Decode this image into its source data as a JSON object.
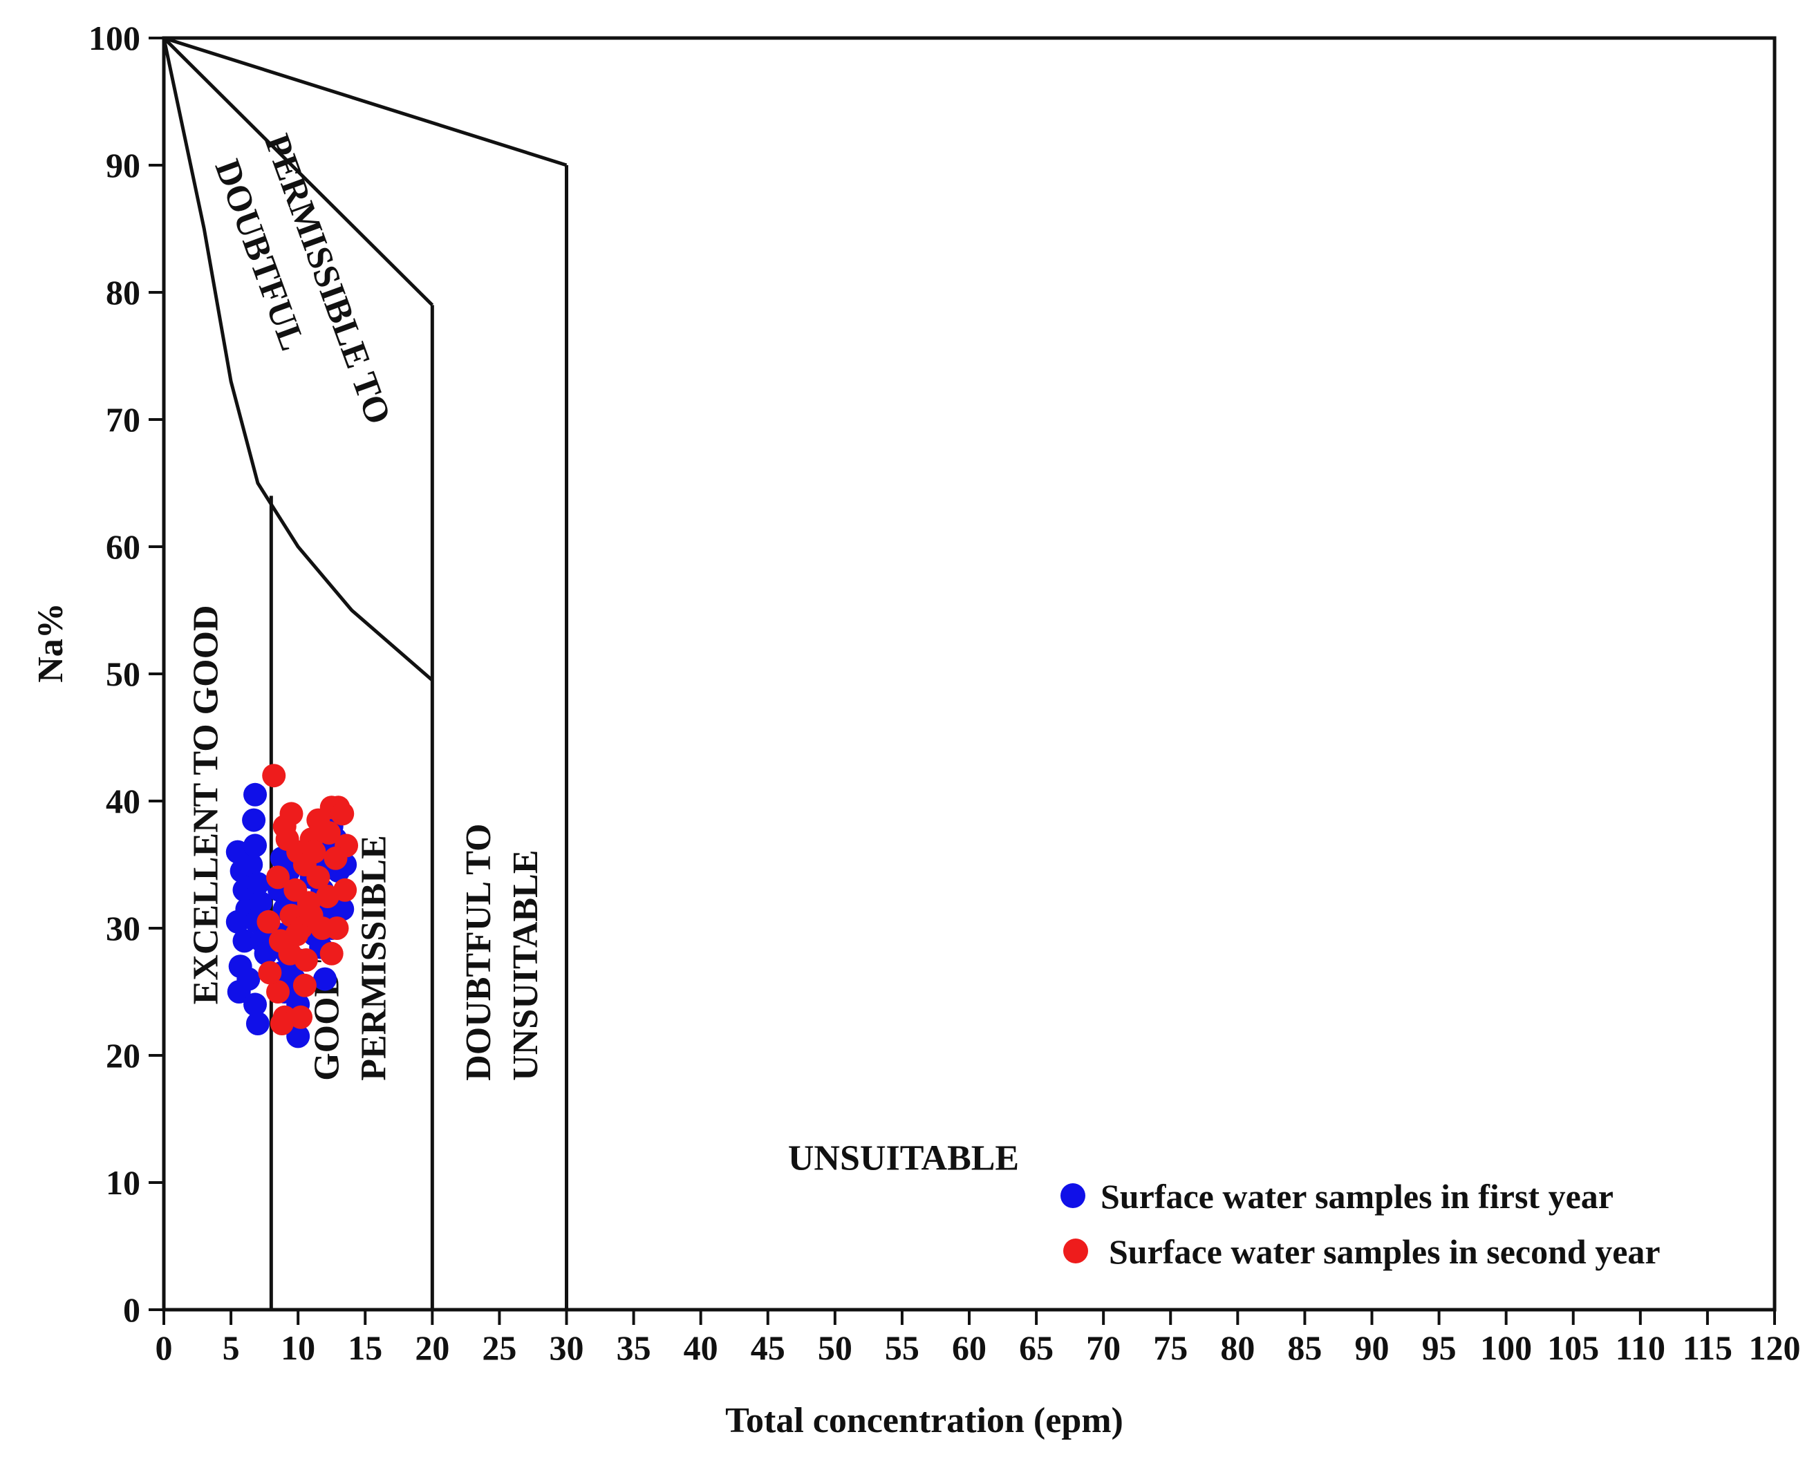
{
  "chart_data": {
    "type": "scatter",
    "title": "",
    "xlabel": "Total concentration (epm)",
    "ylabel": "Na%",
    "xlim": [
      0,
      120
    ],
    "ylim": [
      0,
      100
    ],
    "x_ticks": [
      0,
      5,
      10,
      15,
      20,
      25,
      30,
      35,
      40,
      45,
      50,
      55,
      60,
      65,
      70,
      75,
      80,
      85,
      90,
      95,
      100,
      105,
      110,
      115,
      120
    ],
    "y_ticks": [
      0,
      10,
      20,
      30,
      40,
      50,
      60,
      70,
      80,
      90,
      100
    ],
    "grid": false,
    "legend_position": "bottom-right",
    "colors": {
      "first_year": "#1010e8",
      "second_year": "#ee1c1c",
      "lines": "#111111"
    },
    "boundaries": [
      {
        "name": "excellent-good-upper",
        "points": [
          [
            0,
            100
          ],
          [
            3,
            85
          ],
          [
            5,
            73
          ],
          [
            7,
            65
          ],
          [
            10,
            60
          ],
          [
            14,
            55
          ],
          [
            20,
            49.5
          ]
        ]
      },
      {
        "name": "good-permissible-upper",
        "points": [
          [
            0,
            100
          ],
          [
            20,
            79
          ]
        ]
      },
      {
        "name": "permissible-doubtful-upper",
        "points": [
          [
            0,
            100
          ],
          [
            30,
            90
          ]
        ]
      },
      {
        "name": "divider-8",
        "points": [
          [
            8,
            0
          ],
          [
            8,
            64
          ]
        ]
      },
      {
        "name": "divider-20",
        "points": [
          [
            20,
            0
          ],
          [
            20,
            79
          ]
        ]
      },
      {
        "name": "divider-30",
        "points": [
          [
            30,
            0
          ],
          [
            30,
            90
          ]
        ]
      }
    ],
    "regions": [
      {
        "text": "EXCELLENT TO GOOD",
        "x": 4,
        "y": 24,
        "rotate": -90
      },
      {
        "text": "GOOD TO",
        "x": 13,
        "y": 18,
        "rotate": -90
      },
      {
        "text": "PERMISSIBLE",
        "x": 16.5,
        "y": 18,
        "rotate": -90
      },
      {
        "text": "DOUBTFUL TO",
        "x": 24.3,
        "y": 18,
        "rotate": -90
      },
      {
        "text": "UNSUITABLE",
        "x": 27.8,
        "y": 18,
        "rotate": -90
      },
      {
        "text": "PERMISSIBLE TO",
        "x": 7.5,
        "y": 92,
        "rotate": 70
      },
      {
        "text": "DOUBTFUL",
        "x": 3.8,
        "y": 90,
        "rotate": 70
      },
      {
        "text": "UNSUITABLE",
        "x": 46.5,
        "y": 11,
        "rotate": 0
      }
    ],
    "series": [
      {
        "name": "Surface water samples in first year",
        "points": [
          [
            5.5,
            36
          ],
          [
            5.8,
            34.5
          ],
          [
            6,
            33
          ],
          [
            6.2,
            31.5
          ],
          [
            5.5,
            30.5
          ],
          [
            6,
            29
          ],
          [
            5.7,
            27
          ],
          [
            6.3,
            26
          ],
          [
            5.6,
            25
          ],
          [
            6.8,
            24
          ],
          [
            7,
            22.5
          ],
          [
            6.5,
            35
          ],
          [
            6.8,
            36.5
          ],
          [
            6.7,
            38.5
          ],
          [
            6.8,
            40.5
          ],
          [
            7,
            33.5
          ],
          [
            7.2,
            32
          ],
          [
            6.9,
            30.5
          ],
          [
            7.3,
            29
          ],
          [
            7.6,
            28
          ],
          [
            8.8,
            35.5
          ],
          [
            9.3,
            34.5
          ],
          [
            8.6,
            33
          ],
          [
            9,
            31.5
          ],
          [
            9.6,
            30
          ],
          [
            8.7,
            29.5
          ],
          [
            9.2,
            28
          ],
          [
            10,
            27.5
          ],
          [
            8.8,
            26.5
          ],
          [
            9.7,
            26
          ],
          [
            9,
            25
          ],
          [
            10,
            24
          ],
          [
            10,
            21.5
          ],
          [
            10.5,
            32
          ],
          [
            10.8,
            30.5
          ],
          [
            11.2,
            29.5
          ],
          [
            11.5,
            36.5
          ],
          [
            12,
            35
          ],
          [
            11.8,
            33
          ],
          [
            12.2,
            31.5
          ],
          [
            11.7,
            28.5
          ],
          [
            12,
            26
          ],
          [
            12.5,
            38
          ],
          [
            12.8,
            37
          ],
          [
            13,
            34.5
          ],
          [
            13.5,
            35
          ],
          [
            13.3,
            31.5
          ],
          [
            12.5,
            30
          ],
          [
            11,
            34
          ],
          [
            9.8,
            33
          ]
        ]
      },
      {
        "name": "Surface water samples in second year",
        "points": [
          [
            8.2,
            42
          ],
          [
            9,
            38
          ],
          [
            9.5,
            39
          ],
          [
            9.2,
            37
          ],
          [
            10,
            36
          ],
          [
            8.5,
            34
          ],
          [
            9.8,
            33
          ],
          [
            10.5,
            35
          ],
          [
            11,
            37
          ],
          [
            10.8,
            32
          ],
          [
            9.5,
            31
          ],
          [
            10.2,
            30
          ],
          [
            8.7,
            29
          ],
          [
            9.4,
            28
          ],
          [
            10.6,
            27.5
          ],
          [
            8.5,
            25
          ],
          [
            9,
            23
          ],
          [
            8.8,
            22.5
          ],
          [
            10.2,
            23
          ],
          [
            7.8,
            30.5
          ],
          [
            11.5,
            38.5
          ],
          [
            12.5,
            39.5
          ],
          [
            13,
            39.5
          ],
          [
            13.3,
            39
          ],
          [
            13.6,
            36.5
          ],
          [
            12.8,
            35.5
          ],
          [
            11.5,
            34
          ],
          [
            13.5,
            33
          ],
          [
            12.2,
            32.5
          ],
          [
            11.8,
            30
          ],
          [
            12.5,
            28
          ],
          [
            12.9,
            30
          ],
          [
            10.5,
            25.5
          ],
          [
            11.2,
            36
          ],
          [
            7.9,
            26.5
          ],
          [
            12.3,
            37.5
          ],
          [
            11,
            31
          ],
          [
            9.9,
            29.5
          ]
        ]
      }
    ]
  }
}
